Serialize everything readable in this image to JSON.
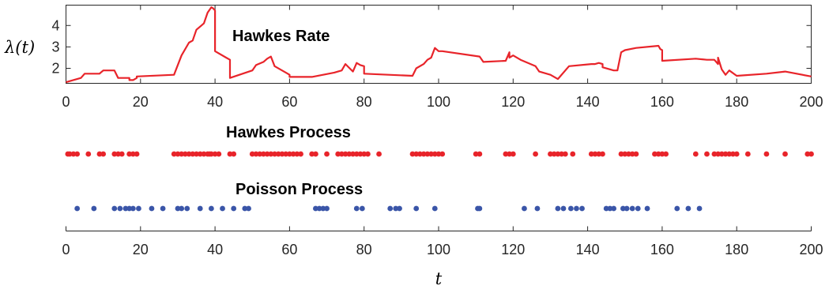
{
  "chart_data": [
    {
      "type": "line",
      "title": "Hawkes Rate",
      "ylabel": "λ(t)",
      "xlabel": "",
      "xlim": [
        0,
        200
      ],
      "ylim": [
        1.3,
        4.95
      ],
      "xticks": [
        0,
        20,
        40,
        60,
        80,
        100,
        120,
        140,
        160,
        180,
        200
      ],
      "xtick_labels": [
        "0",
        "20",
        "40",
        "60",
        "80",
        "100",
        "120",
        "140",
        "160",
        "180",
        "200"
      ],
      "yticks": [
        2,
        3,
        4
      ],
      "ytick_labels": [
        "2",
        "3",
        "4"
      ],
      "box": true,
      "grid": false,
      "color": "#e8242a",
      "series": [
        {
          "x": [
            0,
            4,
            5,
            6,
            9,
            10,
            13,
            14,
            17,
            17,
            18,
            19,
            19,
            29,
            31,
            33,
            34,
            35,
            37,
            38,
            39,
            39.5,
            40,
            40,
            43,
            44,
            44,
            50,
            51,
            53,
            54,
            55,
            56,
            59,
            60,
            60,
            63,
            66,
            72,
            74,
            75,
            77,
            78,
            79,
            80,
            80,
            93,
            94,
            96,
            97,
            98,
            99,
            100,
            101,
            111,
            112,
            118,
            119,
            119,
            120,
            122,
            126,
            127,
            130,
            132,
            135,
            141,
            142,
            143,
            144,
            144,
            147,
            148,
            149,
            150,
            153,
            159,
            159.5,
            160,
            160,
            169,
            172,
            174,
            175,
            175,
            176,
            177,
            178,
            180,
            188,
            193,
            200
          ],
          "y": [
            1.35,
            1.55,
            1.75,
            1.75,
            1.75,
            1.9,
            1.9,
            1.55,
            1.55,
            1.45,
            1.45,
            1.55,
            1.62,
            1.7,
            2.6,
            3.2,
            3.3,
            3.8,
            4.1,
            4.6,
            4.85,
            4.8,
            4.7,
            2.8,
            2.5,
            2.4,
            1.55,
            1.9,
            2.15,
            2.3,
            2.45,
            2.55,
            2.1,
            1.8,
            1.7,
            1.6,
            1.6,
            1.6,
            1.8,
            1.9,
            2.2,
            1.85,
            2.25,
            2.15,
            2.1,
            1.75,
            1.65,
            2.0,
            2.2,
            2.4,
            2.5,
            2.95,
            2.8,
            2.8,
            2.55,
            2.3,
            2.35,
            2.75,
            2.5,
            2.6,
            2.4,
            2.1,
            1.85,
            1.7,
            1.5,
            2.1,
            2.2,
            2.2,
            2.25,
            2.2,
            2.05,
            1.9,
            1.9,
            2.75,
            2.85,
            2.95,
            3.05,
            2.9,
            2.85,
            2.35,
            2.45,
            2.4,
            2.4,
            2.2,
            2.5,
            1.95,
            1.7,
            1.9,
            1.65,
            1.75,
            1.85,
            1.62
          ]
        }
      ]
    },
    {
      "type": "scatter",
      "title": "Hawkes Process",
      "xlim": [
        0,
        200
      ],
      "color": "#e8242a",
      "x": [
        0.5,
        1,
        2,
        3,
        6,
        9,
        10,
        13,
        14,
        15,
        17,
        18,
        19,
        29,
        30,
        31,
        32,
        33,
        34,
        35,
        36,
        37,
        38,
        38.5,
        39,
        40,
        41,
        44,
        45,
        50,
        51,
        52,
        53,
        54,
        55,
        56,
        57,
        58,
        59,
        60,
        61,
        62,
        63,
        66,
        67,
        70,
        73,
        74,
        75,
        76,
        77,
        78,
        79,
        80,
        81,
        84,
        93,
        94,
        95,
        96,
        97,
        98,
        99,
        100,
        101,
        110,
        111,
        118,
        119,
        120,
        126,
        130,
        131,
        132,
        133,
        134,
        136,
        141,
        142,
        143,
        144,
        149,
        150,
        151,
        152,
        153,
        158,
        159,
        160,
        161,
        169,
        172,
        174,
        175,
        176,
        177,
        178,
        179,
        180,
        183,
        188,
        193,
        199,
        200
      ]
    },
    {
      "type": "scatter",
      "title": "Poisson Process",
      "xlim": [
        0,
        200
      ],
      "xticks": [
        0,
        20,
        40,
        60,
        80,
        100,
        120,
        140,
        160,
        180,
        200
      ],
      "xtick_labels": [
        "0",
        "20",
        "40",
        "60",
        "80",
        "100",
        "120",
        "140",
        "160",
        "180",
        "200"
      ],
      "xlabel": "t",
      "color": "#3a55a8",
      "x": [
        3,
        7.5,
        13,
        14.5,
        16,
        17,
        18,
        19.5,
        23,
        26,
        30,
        31,
        32.5,
        36,
        39,
        42,
        45,
        48,
        49,
        67,
        68,
        69,
        70,
        78,
        79.5,
        87,
        88.5,
        89.5,
        94,
        99,
        110.5,
        111,
        123,
        126.5,
        132,
        133.5,
        135.5,
        137,
        138.5,
        145,
        146,
        147,
        149.5,
        150.5,
        152,
        153.5,
        156,
        164,
        167,
        170
      ]
    }
  ]
}
